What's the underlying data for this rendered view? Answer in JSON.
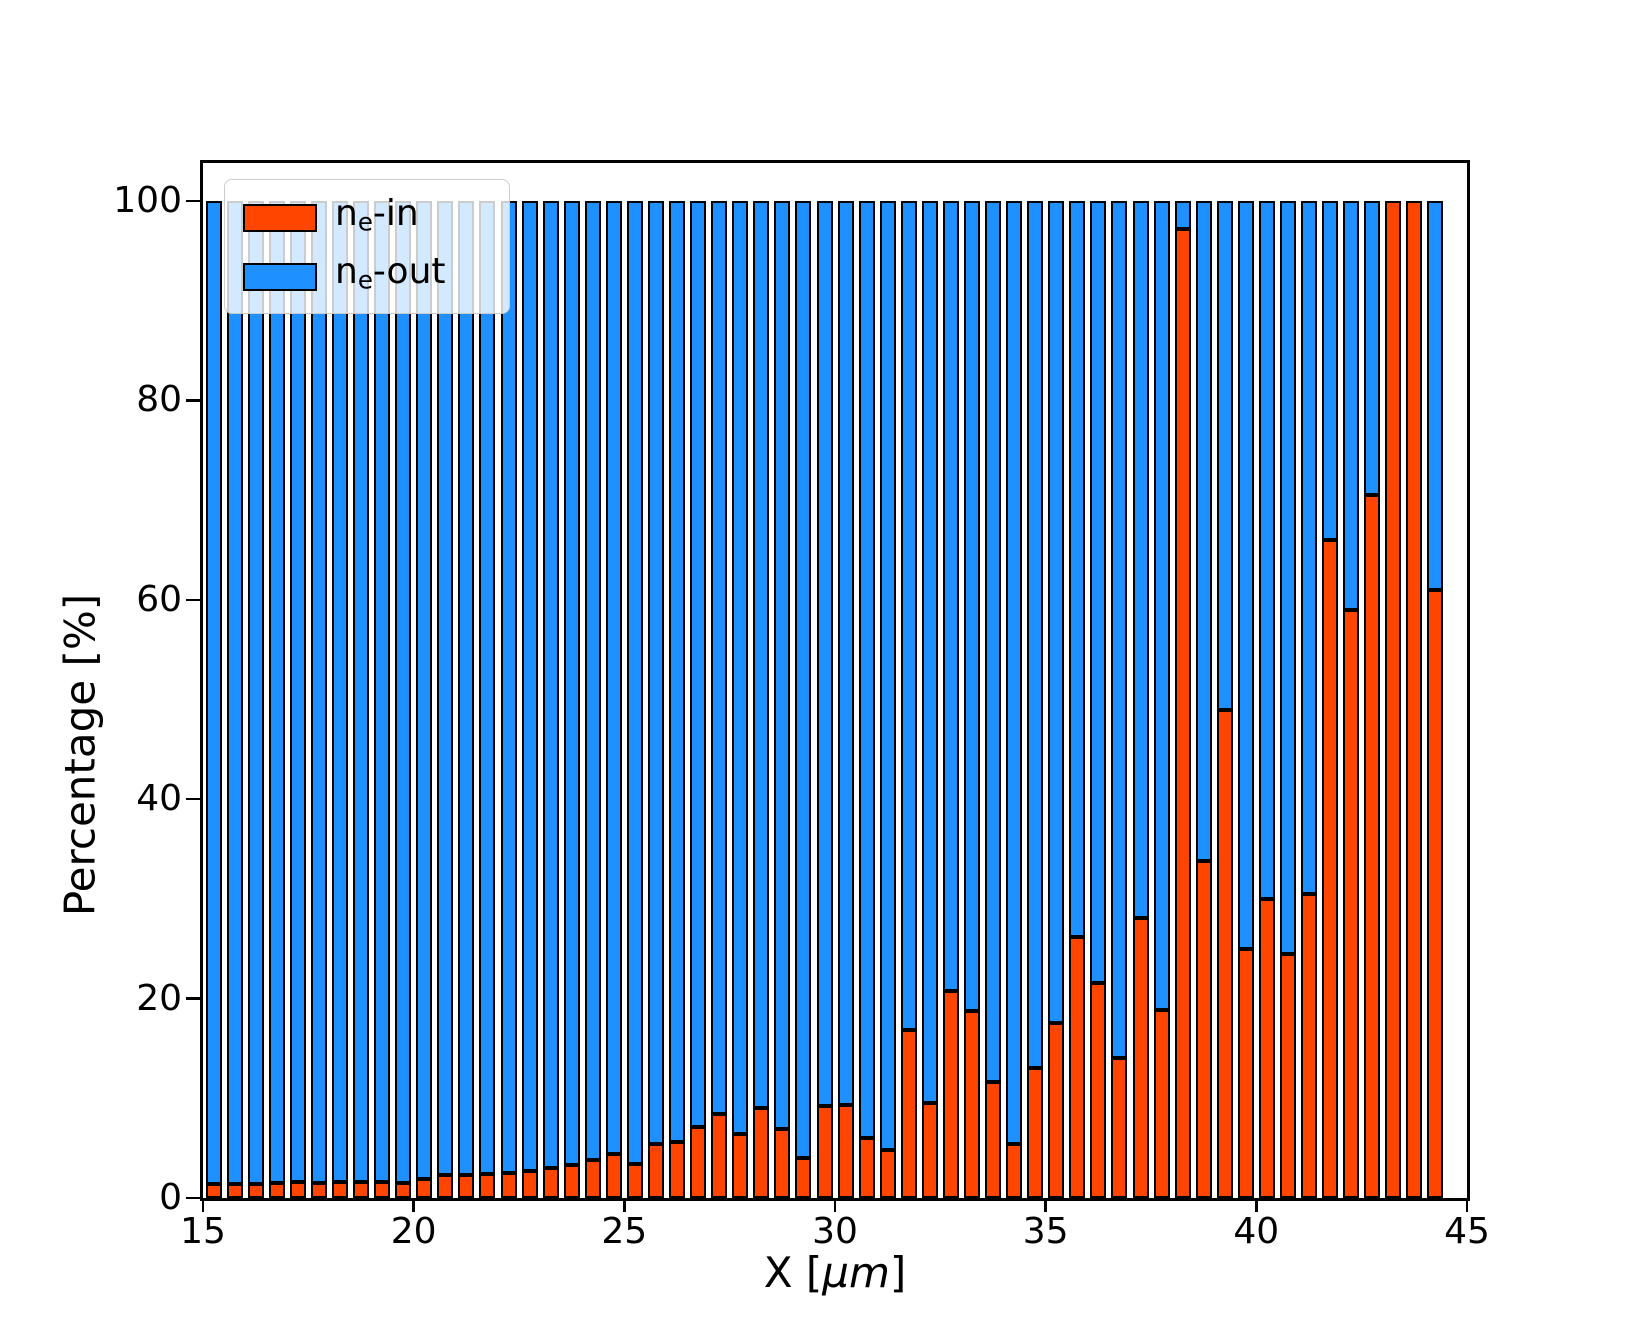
{
  "figure": {
    "background": "#ffffff"
  },
  "colors": {
    "ne_in": "#ff4500",
    "ne_out": "#1e90ff",
    "bar_edge": "#000000",
    "frame": "#000000"
  },
  "legend": {
    "entries": [
      {
        "pre": "n",
        "sub": "e",
        "post": "-in",
        "color_key": "ne_in"
      },
      {
        "pre": "n",
        "sub": "e",
        "post": "-out",
        "color_key": "ne_out"
      }
    ]
  },
  "axes": {
    "xlabel": {
      "pre": "X  [",
      "italic": "μm",
      "post": "]"
    },
    "ylabel": "Percentage  [%]"
  },
  "chart_data": {
    "type": "bar",
    "stacked": true,
    "stack_total_percent": 100,
    "title": "",
    "xlabel": "X [μm]",
    "ylabel": "Percentage [%]",
    "xlim": [
      15,
      45
    ],
    "ylim": [
      0,
      103.8
    ],
    "xticks": [
      15,
      20,
      25,
      30,
      35,
      40,
      45
    ],
    "yticks": [
      0,
      20,
      40,
      60,
      80,
      100
    ],
    "grid": false,
    "legend_position": "upper-left",
    "bin_width_um": 0.5,
    "x": [
      15.25,
      15.75,
      16.25,
      16.75,
      17.25,
      17.75,
      18.25,
      18.75,
      19.25,
      19.75,
      20.25,
      20.75,
      21.25,
      21.75,
      22.25,
      22.75,
      23.25,
      23.75,
      24.25,
      24.75,
      25.25,
      25.75,
      26.25,
      26.75,
      27.25,
      27.75,
      28.25,
      28.75,
      29.25,
      29.75,
      30.25,
      30.75,
      31.25,
      31.75,
      32.25,
      32.75,
      33.25,
      33.75,
      34.25,
      34.75,
      35.25,
      35.75,
      36.25,
      36.75,
      37.25,
      37.75,
      38.25,
      38.75,
      39.25,
      39.75,
      40.25,
      40.75,
      41.25,
      41.75,
      42.25,
      42.75,
      43.25,
      43.75,
      44.25
    ],
    "series": [
      {
        "name": "ne-in",
        "color": "#ff4500",
        "values": [
          1.4,
          1.4,
          1.4,
          1.5,
          1.6,
          1.5,
          1.6,
          1.6,
          1.6,
          1.5,
          1.9,
          2.3,
          2.3,
          2.4,
          2.5,
          2.7,
          3.0,
          3.3,
          3.8,
          4.4,
          3.4,
          5.4,
          5.6,
          7.1,
          8.4,
          6.4,
          9.0,
          6.9,
          4.0,
          9.2,
          9.3,
          6.0,
          4.8,
          16.9,
          9.5,
          20.8,
          18.8,
          11.6,
          5.4,
          13.0,
          17.6,
          26.2,
          21.6,
          14.0,
          28.1,
          18.9,
          97.2,
          33.8,
          48.9,
          25.0,
          30.0,
          24.5,
          30.5,
          66.0,
          59.0,
          70.5,
          100.0,
          100.0,
          61.0
        ]
      },
      {
        "name": "ne-out",
        "color": "#1e90ff",
        "values_rule": "complement_to_100_of_ne-in"
      }
    ]
  }
}
